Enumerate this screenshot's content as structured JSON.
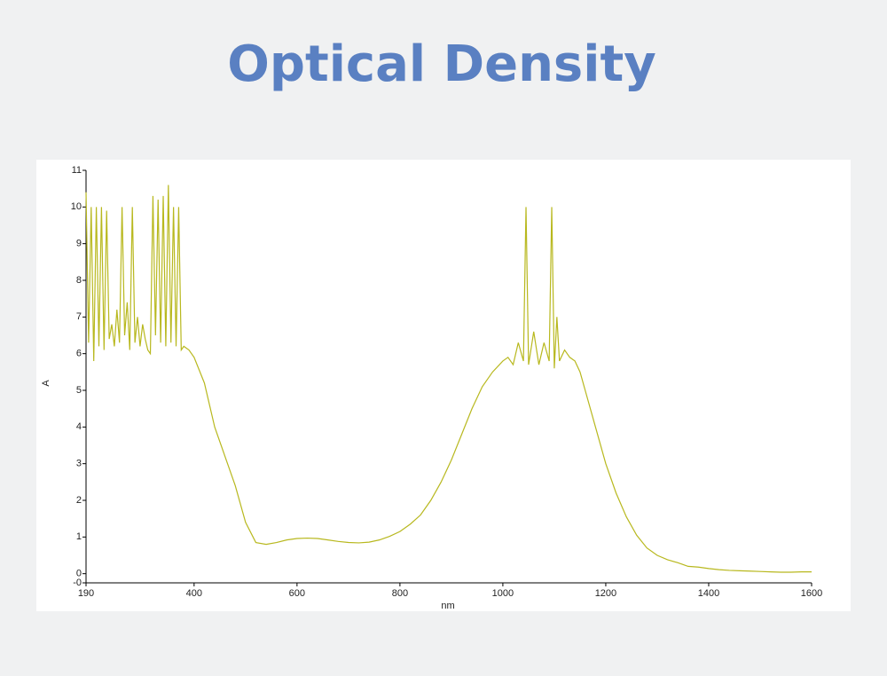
{
  "chart_data": {
    "type": "line",
    "title": "Optical Density",
    "x_label": "nm",
    "y_label": "A",
    "x": [
      190,
      195,
      200,
      205,
      210,
      215,
      220,
      225,
      230,
      235,
      240,
      245,
      250,
      255,
      260,
      265,
      270,
      275,
      280,
      285,
      290,
      295,
      300,
      305,
      310,
      315,
      320,
      325,
      330,
      335,
      340,
      345,
      350,
      355,
      360,
      365,
      370,
      375,
      380,
      390,
      400,
      420,
      440,
      460,
      480,
      500,
      520,
      540,
      560,
      580,
      600,
      620,
      640,
      660,
      680,
      700,
      720,
      740,
      760,
      780,
      800,
      820,
      840,
      860,
      880,
      900,
      920,
      940,
      960,
      980,
      1000,
      1010,
      1020,
      1030,
      1040,
      1045,
      1050,
      1060,
      1070,
      1080,
      1090,
      1095,
      1100,
      1105,
      1110,
      1120,
      1130,
      1140,
      1150,
      1160,
      1180,
      1200,
      1220,
      1240,
      1260,
      1280,
      1300,
      1320,
      1340,
      1360,
      1380,
      1400,
      1420,
      1440,
      1460,
      1480,
      1500,
      1520,
      1540,
      1560,
      1580,
      1600
    ],
    "values": [
      10.4,
      6.3,
      10,
      5.8,
      10,
      6.2,
      10,
      6.1,
      9.9,
      6.4,
      6.8,
      6.2,
      7.2,
      6.3,
      10,
      6.5,
      7.4,
      6.1,
      10,
      6.3,
      7,
      6.2,
      6.8,
      6.4,
      6.1,
      6,
      10.3,
      6.5,
      10.2,
      6.3,
      10.3,
      6.2,
      10.6,
      6.3,
      10,
      6.2,
      10,
      6.1,
      6.2,
      6.1,
      5.9,
      5.2,
      4,
      3.2,
      2.4,
      1.4,
      0.85,
      0.8,
      0.85,
      0.92,
      0.96,
      0.97,
      0.96,
      0.92,
      0.88,
      0.85,
      0.84,
      0.86,
      0.92,
      1.02,
      1.15,
      1.35,
      1.6,
      2,
      2.5,
      3.1,
      3.8,
      4.5,
      5.1,
      5.5,
      5.8,
      5.9,
      5.7,
      6.3,
      5.8,
      10,
      5.7,
      6.6,
      5.7,
      6.3,
      5.8,
      10,
      5.6,
      7,
      5.8,
      6.1,
      5.9,
      5.8,
      5.5,
      5,
      4,
      3,
      2.2,
      1.55,
      1.05,
      0.7,
      0.5,
      0.38,
      0.3,
      0.2,
      0.18,
      0.14,
      0.11,
      0.09,
      0.08,
      0.07,
      0.06,
      0.05,
      0.04,
      0.04,
      0.05,
      0.05
    ],
    "color": "#b8b81e",
    "xlim": [
      190,
      1600
    ],
    "xticks": [
      190,
      400,
      600,
      800,
      1000,
      1200,
      1400,
      1600
    ],
    "ylim": [
      -0.25,
      11
    ],
    "yticks": [
      {
        "value": -0.25,
        "label": "-0"
      },
      0,
      1,
      2,
      3,
      4,
      5,
      6,
      7,
      8,
      9,
      10,
      11
    ]
  }
}
